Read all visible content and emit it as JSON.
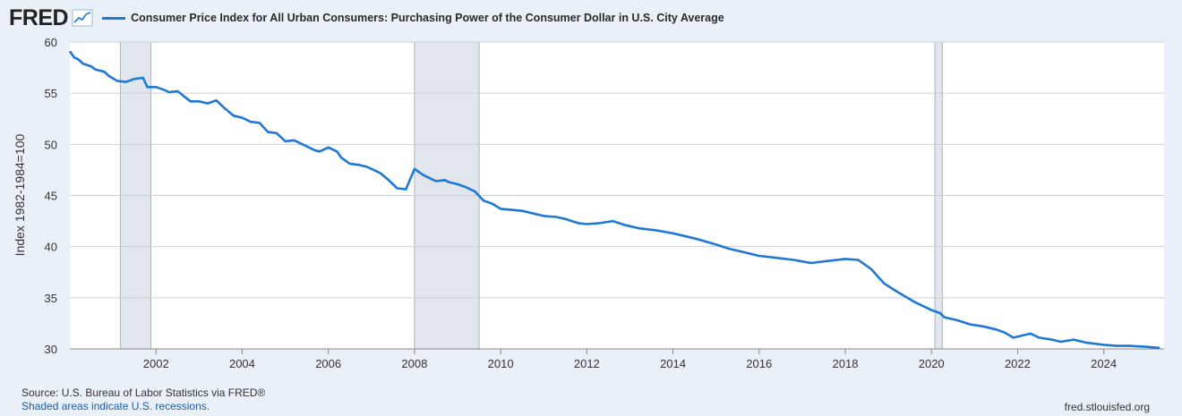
{
  "logo": {
    "text": "FRED",
    "icon": "chart-line-icon"
  },
  "colors": {
    "series": "#1f78d6",
    "recession": "#e0e6ec",
    "plot_bg": "#ffffff",
    "page_bg": "#e9f0f8"
  },
  "footer": {
    "source": "Source: U.S. Bureau of Labor Statistics via FRED®",
    "recession_note": "Shaded areas indicate U.S. recessions.",
    "site": "fred.stlouisfed.org"
  },
  "chart_data": {
    "type": "line",
    "title": "Consumer Price Index for All Urban Consumers: Purchasing Power of the Consumer Dollar in U.S. City Average",
    "xlabel": "",
    "ylabel": "Index 1982-1984=100",
    "xlim": [
      2000.0,
      2025.4
    ],
    "ylim": [
      30,
      60
    ],
    "yticks": [
      30,
      35,
      40,
      45,
      50,
      55,
      60
    ],
    "xticks": [
      2002,
      2004,
      2006,
      2008,
      2010,
      2012,
      2014,
      2016,
      2018,
      2020,
      2022,
      2024
    ],
    "grid": true,
    "legend": "top-left",
    "recessions": [
      [
        2001.17,
        2001.88
      ],
      [
        2008.0,
        2009.5
      ],
      [
        2020.08,
        2020.25
      ]
    ],
    "series": [
      {
        "name": "Consumer Price Index for All Urban Consumers: Purchasing Power of the Consumer Dollar in U.S. City Average",
        "x": [
          2000.0,
          2000.1,
          2000.2,
          2000.3,
          2000.5,
          2000.6,
          2000.8,
          2000.9,
          2001.1,
          2001.3,
          2001.5,
          2001.7,
          2001.8,
          2002.0,
          2002.2,
          2002.3,
          2002.5,
          2002.8,
          2003.0,
          2003.2,
          2003.4,
          2003.6,
          2003.8,
          2004.0,
          2004.2,
          2004.4,
          2004.6,
          2004.8,
          2005.0,
          2005.2,
          2005.4,
          2005.6,
          2005.7,
          2005.8,
          2006.0,
          2006.2,
          2006.3,
          2006.5,
          2006.7,
          2006.9,
          2007.0,
          2007.2,
          2007.4,
          2007.6,
          2007.8,
          2008.0,
          2008.2,
          2008.4,
          2008.5,
          2008.7,
          2008.8,
          2009.0,
          2009.2,
          2009.4,
          2009.6,
          2009.8,
          2010.0,
          2010.5,
          2011.0,
          2011.3,
          2011.5,
          2011.8,
          2012.0,
          2012.3,
          2012.6,
          2012.9,
          2013.2,
          2013.6,
          2014.0,
          2014.3,
          2014.6,
          2015.0,
          2015.3,
          2015.6,
          2016.0,
          2016.4,
          2016.8,
          2017.2,
          2017.6,
          2018.0,
          2018.3,
          2018.6,
          2018.9,
          2019.2,
          2019.6,
          2020.0,
          2020.2,
          2020.3,
          2020.6,
          2020.9,
          2021.2,
          2021.5,
          2021.7,
          2021.9,
          2022.1,
          2022.3,
          2022.5,
          2022.8,
          2023.0,
          2023.3,
          2023.6,
          2024.0,
          2024.3,
          2024.6,
          2025.0,
          2025.3
        ],
        "values": [
          59.1,
          58.5,
          58.3,
          57.9,
          57.6,
          57.3,
          57.1,
          56.7,
          56.2,
          56.1,
          56.4,
          56.5,
          55.6,
          55.6,
          55.3,
          55.1,
          55.2,
          54.2,
          54.2,
          54.0,
          54.3,
          53.5,
          52.8,
          52.6,
          52.2,
          52.1,
          51.2,
          51.1,
          50.3,
          50.4,
          50.0,
          49.6,
          49.4,
          49.3,
          49.7,
          49.3,
          48.7,
          48.1,
          48.0,
          47.8,
          47.6,
          47.2,
          46.5,
          45.7,
          45.6,
          47.6,
          47.0,
          46.6,
          46.4,
          46.5,
          46.3,
          46.1,
          45.8,
          45.4,
          44.5,
          44.2,
          43.7,
          43.5,
          43.0,
          42.9,
          42.7,
          42.3,
          42.2,
          42.3,
          42.5,
          42.1,
          41.8,
          41.6,
          41.3,
          41.0,
          40.7,
          40.2,
          39.8,
          39.5,
          39.1,
          38.9,
          38.7,
          38.4,
          38.6,
          38.8,
          38.7,
          37.8,
          36.4,
          35.6,
          34.6,
          33.8,
          33.5,
          33.1,
          32.8,
          32.4,
          32.2,
          31.9,
          31.6,
          31.1,
          31.3,
          31.5,
          31.1,
          30.9,
          30.7,
          30.9,
          30.6,
          30.4,
          30.3,
          30.3,
          30.2,
          30.1
        ],
        "color": "#1f78d6"
      }
    ]
  }
}
